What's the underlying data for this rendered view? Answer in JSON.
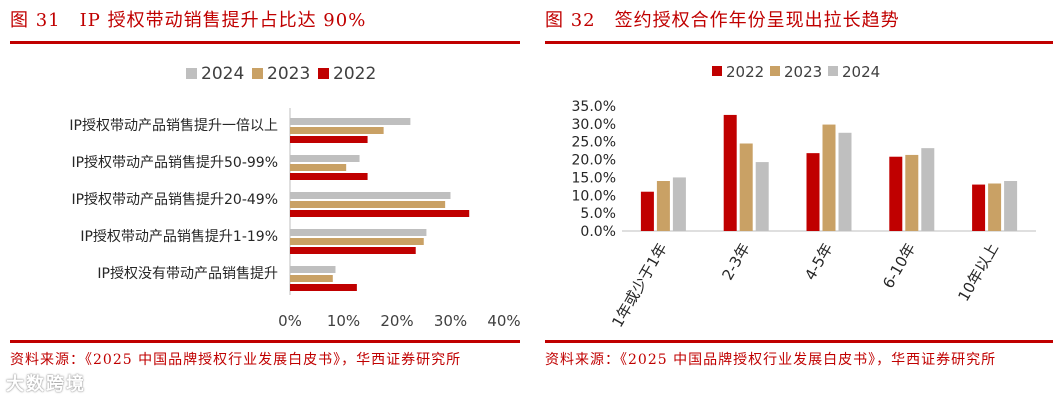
{
  "left_figure": {
    "title": "图 31　IP 授权带动销售提升占比达 90%",
    "source": "资料来源：《2025 中国品牌授权行业发展白皮书》，华西证券研究所"
  },
  "right_figure": {
    "title": "图 32　签约授权合作年份呈现出拉长趋势",
    "source": "资料来源：《2025 中国品牌授权行业发展白皮书》，华西证券研究所"
  },
  "watermark": "大数跨境",
  "colors": {
    "c2024": "#bfbfbf",
    "c2023": "#c9a165",
    "c2022": "#c00000",
    "accent": "#c00000"
  },
  "chart_data": [
    {
      "type": "bar",
      "orientation": "horizontal",
      "categories": [
        "IP授权带动产品销售提升一倍以上",
        "IP授权带动产品销售提升50-99%",
        "IP授权带动产品销售提升20-49%",
        "IP授权带动产品销售提升1-19%",
        "IP授权没有带动产品销售提升"
      ],
      "series": [
        {
          "name": "2024",
          "values": [
            22.5,
            13,
            30,
            25.5,
            8.5
          ]
        },
        {
          "name": "2023",
          "values": [
            17.5,
            10.5,
            29,
            25,
            8
          ]
        },
        {
          "name": "2022",
          "values": [
            14.5,
            14.5,
            33.5,
            23.5,
            12.5
          ]
        }
      ],
      "xlim": [
        0,
        40
      ],
      "xticks": [
        "0%",
        "10%",
        "20%",
        "30%",
        "40%"
      ],
      "legend_position": "top",
      "grid": false
    },
    {
      "type": "bar",
      "orientation": "vertical",
      "categories": [
        "1年或少于1年",
        "2-3年",
        "4-5年",
        "6-10年",
        "10年以上"
      ],
      "series": [
        {
          "name": "2022",
          "values": [
            11,
            32.5,
            21.8,
            20.8,
            13
          ]
        },
        {
          "name": "2023",
          "values": [
            14,
            24.5,
            29.8,
            21.3,
            13.3
          ]
        },
        {
          "name": "2024",
          "values": [
            15,
            19.3,
            27.5,
            23.2,
            14
          ]
        }
      ],
      "ylim": [
        0,
        35
      ],
      "yticks": [
        "0.0%",
        "5.0%",
        "10.0%",
        "15.0%",
        "20.0%",
        "25.0%",
        "30.0%",
        "35.0%"
      ],
      "legend_position": "top",
      "grid": false
    }
  ]
}
